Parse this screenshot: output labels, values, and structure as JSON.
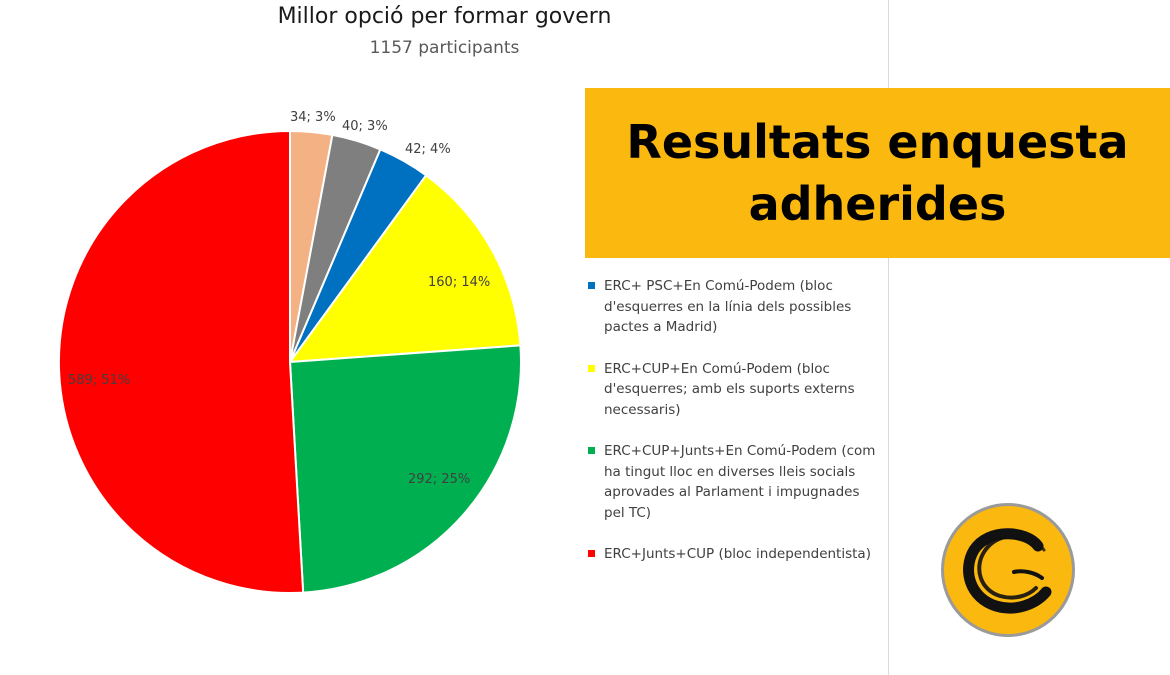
{
  "banner": {
    "title": "Resultats enquesta adherides"
  },
  "colors": {
    "banner": "#fbb80f",
    "logo_bg": "#fbb80f"
  },
  "logo": {
    "icon": "brush-c-icon"
  },
  "chart_data": {
    "type": "pie",
    "title": "Millor opció per formar govern",
    "subtitle": "1157 participants",
    "legend_position": "right",
    "slices": [
      {
        "label": "",
        "value": 34,
        "percent": 3,
        "color": "#f4b183",
        "data_label": "34; 3%"
      },
      {
        "label": "",
        "value": 40,
        "percent": 3,
        "color": "#7f7f7f",
        "data_label": "40; 3%"
      },
      {
        "label": "ERC+ PSC+En Comú-Podem (bloc d'esquerres en la línia dels possibles pactes a Madrid)",
        "value": 42,
        "percent": 4,
        "color": "#0070c0",
        "data_label": "42; 4%"
      },
      {
        "label": "ERC+CUP+En Comú-Podem (bloc d'esquerres; amb els suports externs necessaris)",
        "value": 160,
        "percent": 14,
        "color": "#ffff00",
        "data_label": "160; 14%"
      },
      {
        "label": "ERC+CUP+Junts+En Comú-Podem (com ha tingut lloc en diverses lleis socials aprovades al Parlament i impugnades pel TC)",
        "value": 292,
        "percent": 25,
        "color": "#00b050",
        "data_label": "292; 25%"
      },
      {
        "label": "ERC+Junts+CUP (bloc independentista)",
        "value": 589,
        "percent": 51,
        "color": "#ff0000",
        "data_label": "589; 51%"
      }
    ],
    "legend": [
      {
        "label": "ERC+ PSC+En Comú-Podem (bloc d'esquerres en la línia dels possibles pactes a Madrid)",
        "color": "#0070c0"
      },
      {
        "label": "ERC+CUP+En Comú-Podem (bloc d'esquerres; amb els suports externs necessaris)",
        "color": "#ffff00"
      },
      {
        "label": "ERC+CUP+Junts+En Comú-Podem (com ha tingut lloc en diverses lleis socials aprovades al Parlament i impugnades pel TC)",
        "color": "#00b050"
      },
      {
        "label": "ERC+Junts+CUP (bloc independentista)",
        "color": "#ff0000"
      }
    ]
  }
}
